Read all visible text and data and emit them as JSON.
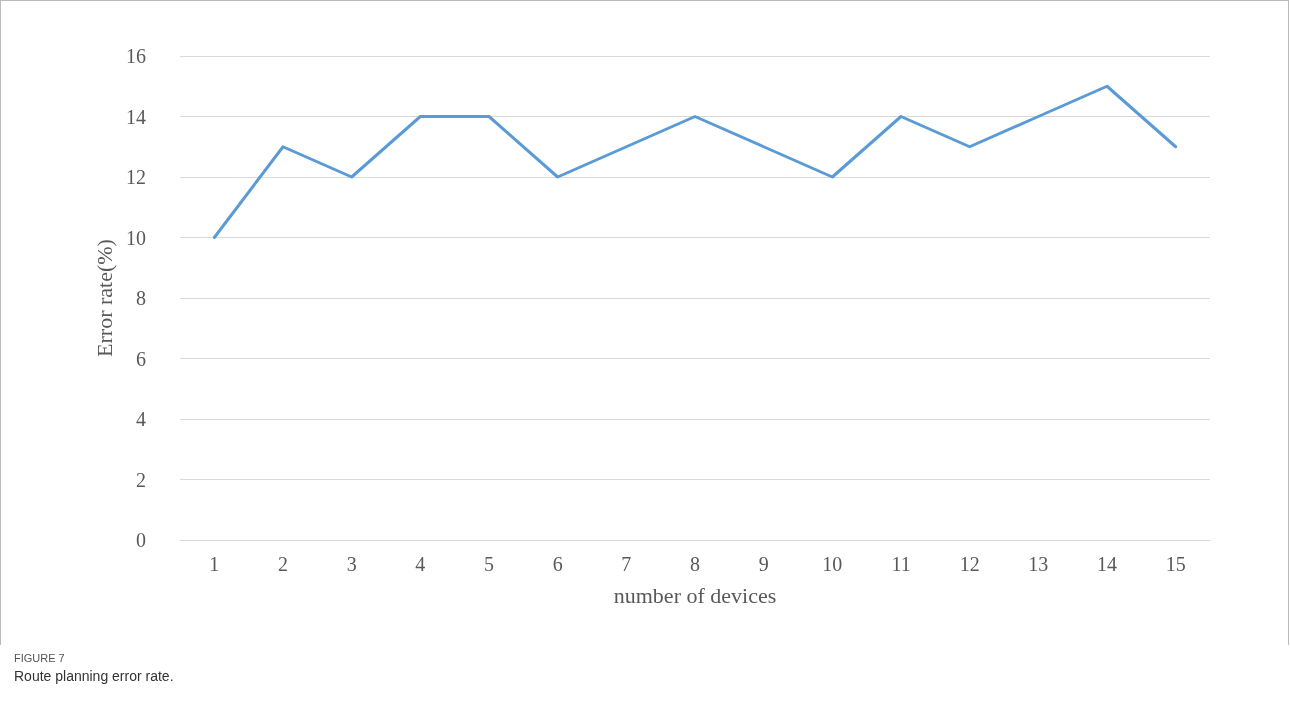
{
  "chart_data": {
    "type": "line",
    "categories": [
      "1",
      "2",
      "3",
      "4",
      "5",
      "6",
      "7",
      "8",
      "9",
      "10",
      "11",
      "12",
      "13",
      "14",
      "15"
    ],
    "series": [
      {
        "color": "#5b9bd5",
        "values": [
          10,
          13,
          12,
          14,
          14,
          12,
          13,
          14,
          13,
          12,
          14,
          13,
          14,
          15,
          13
        ]
      }
    ],
    "xlabel": "number of devices",
    "ylabel": "Error rate(%)",
    "ylim": [
      0,
      16
    ],
    "yticks": [
      0,
      2,
      4,
      6,
      8,
      10,
      12,
      14,
      16
    ],
    "grid": "y",
    "marker": "none",
    "line_style": "solid",
    "annotations": [
      "FIGURE 7",
      "Route planning error rate."
    ]
  }
}
